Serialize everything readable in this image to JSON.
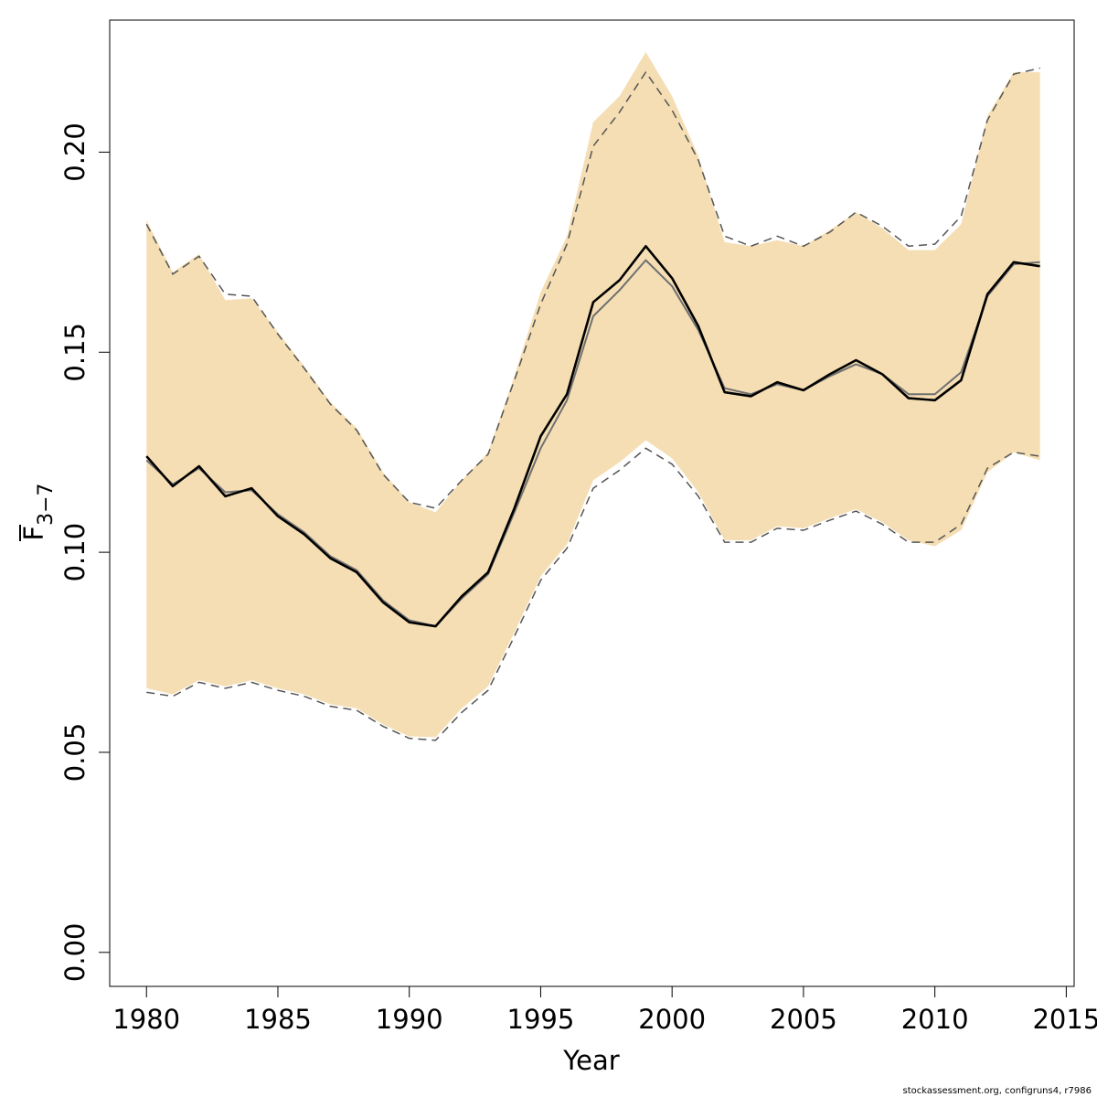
{
  "chart_data": {
    "type": "line",
    "xlabel": "Year",
    "ylabel_main": "F",
    "ylabel_sub": "3−7",
    "xlim": [
      1978.6,
      2015.3
    ],
    "ylim": [
      -0.0085,
      0.233
    ],
    "x_ticks": [
      1980,
      1985,
      1990,
      1995,
      2000,
      2005,
      2010,
      2015
    ],
    "x_tick_labels": [
      "1980",
      "1985",
      "1990",
      "1995",
      "2000",
      "2005",
      "2010",
      "2015"
    ],
    "y_ticks": [
      0.0,
      0.05,
      0.1,
      0.15,
      0.2
    ],
    "y_tick_labels": [
      "0.00",
      "0.05",
      "0.10",
      "0.15",
      "0.20"
    ],
    "x": [
      1980,
      1981,
      1982,
      1983,
      1984,
      1985,
      1986,
      1987,
      1988,
      1989,
      1990,
      1991,
      1992,
      1993,
      1994,
      1995,
      1996,
      1997,
      1998,
      1999,
      2000,
      2001,
      2002,
      2003,
      2004,
      2005,
      2006,
      2007,
      2008,
      2009,
      2010,
      2011,
      2012,
      2013,
      2014
    ],
    "series": [
      {
        "role": "band",
        "color": "#F5DEB3",
        "lower": [
          0.066,
          0.0645,
          0.068,
          0.0665,
          0.068,
          0.066,
          0.0645,
          0.062,
          0.061,
          0.057,
          0.054,
          0.0538,
          0.061,
          0.0665,
          0.08,
          0.094,
          0.102,
          0.118,
          0.1225,
          0.128,
          0.1235,
          0.115,
          0.103,
          0.103,
          0.1065,
          0.106,
          0.1085,
          0.1108,
          0.1075,
          0.103,
          0.1015,
          0.1055,
          0.12,
          0.125,
          0.123
        ],
        "upper": [
          0.183,
          0.17,
          0.1745,
          0.163,
          0.1635,
          0.155,
          0.1465,
          0.1375,
          0.131,
          0.12,
          0.1125,
          0.11,
          0.118,
          0.125,
          0.144,
          0.165,
          0.179,
          0.2075,
          0.214,
          0.225,
          0.214,
          0.199,
          0.1775,
          0.1765,
          0.178,
          0.1765,
          0.1805,
          0.185,
          0.181,
          0.1755,
          0.1755,
          0.182,
          0.209,
          0.22,
          0.22
        ]
      },
      {
        "role": "ci-lower-dashed",
        "color": "#555555",
        "values": [
          0.065,
          0.064,
          0.0675,
          0.066,
          0.0675,
          0.0655,
          0.064,
          0.0615,
          0.0605,
          0.0565,
          0.0535,
          0.053,
          0.06,
          0.0655,
          0.079,
          0.093,
          0.101,
          0.116,
          0.1205,
          0.126,
          0.122,
          0.114,
          0.1025,
          0.1025,
          0.106,
          0.1055,
          0.108,
          0.1103,
          0.107,
          0.1025,
          0.1025,
          0.107,
          0.121,
          0.125,
          0.124
        ]
      },
      {
        "role": "ci-upper-dashed",
        "color": "#555555",
        "values": [
          0.182,
          0.1695,
          0.174,
          0.1645,
          0.164,
          0.1545,
          0.146,
          0.137,
          0.1305,
          0.1195,
          0.1125,
          0.111,
          0.118,
          0.1245,
          0.143,
          0.162,
          0.177,
          0.2015,
          0.21,
          0.22,
          0.2105,
          0.198,
          0.179,
          0.1765,
          0.179,
          0.1765,
          0.18,
          0.185,
          0.1815,
          0.1765,
          0.177,
          0.184,
          0.208,
          0.2195,
          0.221
        ]
      },
      {
        "role": "estimate-grey",
        "color": "#707070",
        "values": [
          0.123,
          0.117,
          0.121,
          0.115,
          0.1155,
          0.1095,
          0.105,
          0.099,
          0.0955,
          0.088,
          0.083,
          0.0815,
          0.0885,
          0.0945,
          0.11,
          0.126,
          0.138,
          0.159,
          0.1655,
          0.173,
          0.1665,
          0.1555,
          0.141,
          0.1395,
          0.142,
          0.1405,
          0.144,
          0.147,
          0.1445,
          0.1395,
          0.1395,
          0.145,
          0.164,
          0.172,
          0.1725
        ]
      },
      {
        "role": "estimate-black",
        "color": "#000000",
        "values": [
          0.124,
          0.1165,
          0.1215,
          0.114,
          0.116,
          0.109,
          0.1045,
          0.0985,
          0.095,
          0.0875,
          0.0825,
          0.0815,
          0.089,
          0.095,
          0.111,
          0.129,
          0.1395,
          0.1625,
          0.168,
          0.1765,
          0.1685,
          0.1565,
          0.14,
          0.139,
          0.1425,
          0.1405,
          0.1445,
          0.148,
          0.1445,
          0.1385,
          0.138,
          0.143,
          0.1645,
          0.1725,
          0.1715
        ]
      }
    ]
  },
  "footer_text": "stockassessment.org, configruns4, r7986"
}
